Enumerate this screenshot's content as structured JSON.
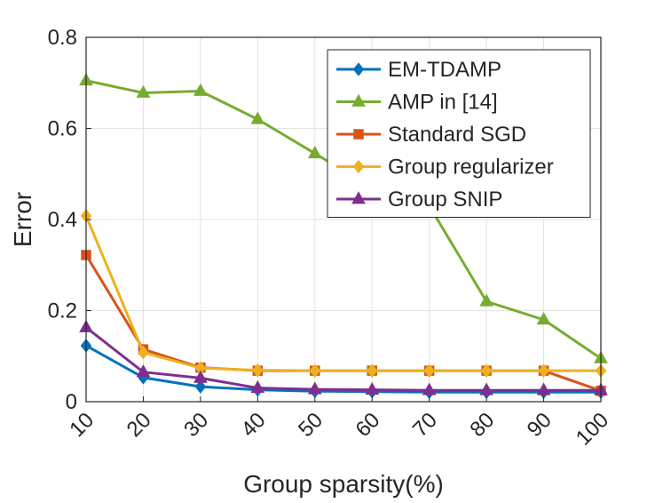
{
  "chart_data": {
    "type": "line",
    "xlabel": "Group sparsity(%)",
    "ylabel": "Error",
    "x": [
      10,
      20,
      30,
      40,
      50,
      60,
      70,
      80,
      90,
      100
    ],
    "xticks": [
      "10",
      "20",
      "30",
      "40",
      "50",
      "60",
      "70",
      "80",
      "90",
      "100"
    ],
    "yticks": [
      "0",
      "0.2",
      "0.4",
      "0.6",
      "0.8"
    ],
    "xlim": [
      10,
      100
    ],
    "ylim": [
      0,
      0.8
    ],
    "grid": true,
    "legend_position": "top-right",
    "series": [
      {
        "name": "EM-TDAMP",
        "color": "#0072BD",
        "marker": "diamond",
        "values": [
          0.123,
          0.053,
          0.033,
          0.026,
          0.023,
          0.022,
          0.021,
          0.021,
          0.021,
          0.021
        ]
      },
      {
        "name": "AMP in [14]",
        "color": "#77AC30",
        "marker": "triangle",
        "values": [
          0.705,
          0.678,
          0.682,
          0.62,
          0.545,
          0.47,
          0.43,
          0.22,
          0.18,
          0.095
        ]
      },
      {
        "name": "Standard SGD",
        "color": "#D95319",
        "marker": "square",
        "values": [
          0.322,
          0.115,
          0.075,
          0.068,
          0.068,
          0.068,
          0.068,
          0.068,
          0.068,
          0.024
        ]
      },
      {
        "name": "Group regularizer",
        "color": "#EDB120",
        "marker": "diamond",
        "values": [
          0.408,
          0.108,
          0.074,
          0.069,
          0.068,
          0.068,
          0.068,
          0.068,
          0.068,
          0.068
        ]
      },
      {
        "name": "Group SNIP",
        "color": "#7E2F8E",
        "marker": "triangle",
        "values": [
          0.163,
          0.065,
          0.052,
          0.03,
          0.027,
          0.026,
          0.025,
          0.025,
          0.025,
          0.025
        ]
      }
    ]
  }
}
